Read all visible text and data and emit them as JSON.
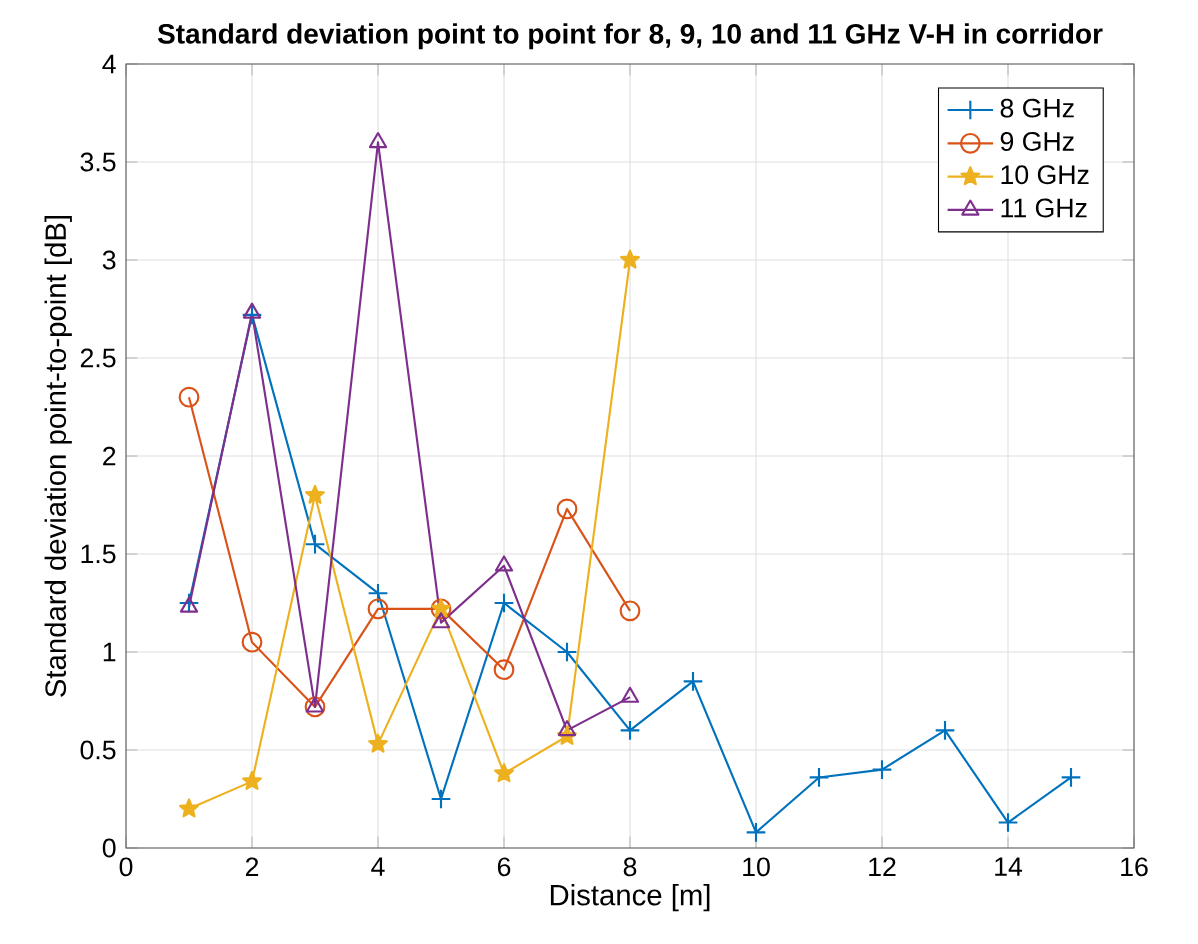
{
  "chart_data": {
    "type": "line",
    "title": "Standard deviation point to point for 8, 9, 10 and 11 GHz V-H in corridor",
    "xlabel": "Distance [m]",
    "ylabel": "Standard deviation point-to-point [dB]",
    "xlim": [
      0,
      16
    ],
    "xticks": [
      0,
      2,
      4,
      6,
      8,
      10,
      12,
      14,
      16
    ],
    "ylim": [
      0,
      4
    ],
    "yticks": [
      0,
      0.5,
      1,
      1.5,
      2,
      2.5,
      3,
      3.5,
      4
    ],
    "grid": true,
    "legend": "top right",
    "series": [
      {
        "name": "8 GHz",
        "color": "#0072bd",
        "marker": "cross",
        "x": [
          1,
          2,
          3,
          4,
          5,
          6,
          7,
          8,
          9,
          10,
          11,
          12,
          13,
          14,
          15
        ],
        "values": [
          1.25,
          2.72,
          1.55,
          1.3,
          0.25,
          1.25,
          1.0,
          0.6,
          0.85,
          0.08,
          0.36,
          0.4,
          0.6,
          0.13,
          0.36
        ]
      },
      {
        "name": "9 GHz",
        "color": "#d95319",
        "marker": "circle",
        "x": [
          1,
          2,
          3,
          4,
          5,
          6,
          7,
          8
        ],
        "values": [
          2.3,
          1.05,
          0.72,
          1.22,
          1.22,
          0.91,
          1.73,
          1.21
        ]
      },
      {
        "name": "10 GHz",
        "color": "#edb120",
        "marker": "star",
        "x": [
          1,
          2,
          3,
          4,
          5,
          6,
          7,
          8
        ],
        "values": [
          0.2,
          0.34,
          1.8,
          0.53,
          1.22,
          0.38,
          0.57,
          3.0
        ]
      },
      {
        "name": "11 GHz",
        "color": "#7e2f8e",
        "marker": "triangle",
        "x": [
          1,
          2,
          3,
          4,
          5,
          6,
          7,
          8
        ],
        "values": [
          1.23,
          2.73,
          0.72,
          3.6,
          1.15,
          1.44,
          0.6,
          0.77
        ]
      }
    ]
  }
}
